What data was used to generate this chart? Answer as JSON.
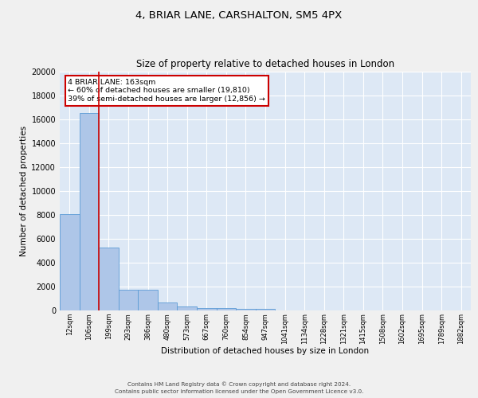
{
  "title1": "4, BRIAR LANE, CARSHALTON, SM5 4PX",
  "title2": "Size of property relative to detached houses in London",
  "xlabel": "Distribution of detached houses by size in London",
  "ylabel": "Number of detached properties",
  "bin_labels": [
    "12sqm",
    "106sqm",
    "199sqm",
    "293sqm",
    "386sqm",
    "480sqm",
    "573sqm",
    "667sqm",
    "760sqm",
    "854sqm",
    "947sqm",
    "1041sqm",
    "1134sqm",
    "1228sqm",
    "1321sqm",
    "1415sqm",
    "1508sqm",
    "1602sqm",
    "1695sqm",
    "1789sqm",
    "1882sqm"
  ],
  "bar_heights": [
    8100,
    16500,
    5300,
    1750,
    1750,
    700,
    320,
    210,
    190,
    160,
    130,
    0,
    0,
    0,
    0,
    0,
    0,
    0,
    0,
    0,
    0
  ],
  "bar_color": "#aec6e8",
  "bar_edge_color": "#5b9bd5",
  "background_color": "#dde8f5",
  "grid_color": "#ffffff",
  "annotation_line1": "4 BRIAR LANE: 163sqm",
  "annotation_line2": "← 60% of detached houses are smaller (19,810)",
  "annotation_line3": "39% of semi-detached houses are larger (12,856) →",
  "annotation_box_color": "#ffffff",
  "annotation_box_edge": "#cc0000",
  "ylim": [
    0,
    20000
  ],
  "yticks": [
    0,
    2000,
    4000,
    6000,
    8000,
    10000,
    12000,
    14000,
    16000,
    18000,
    20000
  ],
  "footer1": "Contains HM Land Registry data © Crown copyright and database right 2024.",
  "footer2": "Contains public sector information licensed under the Open Government Licence v3.0.",
  "red_line_color": "#cc0000",
  "fig_bg": "#f0f0f0"
}
